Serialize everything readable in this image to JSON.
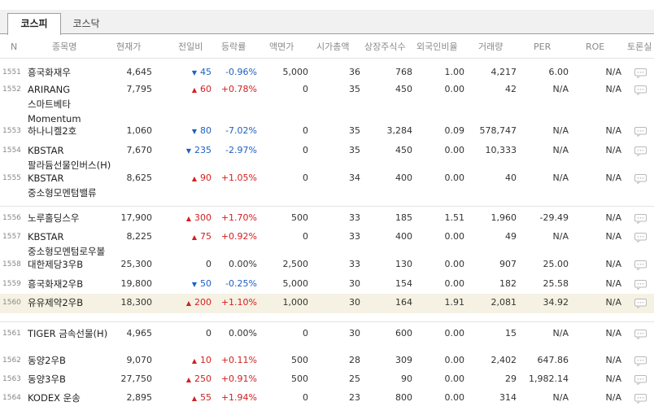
{
  "tabs": [
    {
      "label": "코스피",
      "active": true
    },
    {
      "label": "코스닥",
      "active": false
    }
  ],
  "columns": [
    "N",
    "종목명",
    "현재가",
    "전일비",
    "등락률",
    "액면가",
    "시가총액",
    "상장주식수",
    "외국인비율",
    "거래량",
    "PER",
    "ROE",
    "토론실"
  ],
  "colors": {
    "up": "#d22020",
    "down": "#1f5fbf",
    "highlight": "#f5f2e3"
  },
  "rows": [
    {
      "no": "1551",
      "name": "흥국화재우",
      "price": "4,645",
      "dir": "down",
      "change": "45",
      "rate": "-0.96%",
      "par": "5,000",
      "cap": "36",
      "shares": "768",
      "foreign": "1.00",
      "volume": "4,217",
      "per": "6.00",
      "roe": "N/A"
    },
    {
      "no": "1552",
      "name": "ARIRANG 스마트베타 Momentum",
      "price": "7,795",
      "dir": "up",
      "change": "60",
      "rate": "+0.78%",
      "par": "0",
      "cap": "35",
      "shares": "450",
      "foreign": "0.00",
      "volume": "42",
      "per": "N/A",
      "roe": "N/A"
    },
    {
      "no": "1553",
      "name": "하나니켈2호",
      "price": "1,060",
      "dir": "down",
      "change": "80",
      "rate": "-7.02%",
      "par": "0",
      "cap": "35",
      "shares": "3,284",
      "foreign": "0.09",
      "volume": "578,747",
      "per": "N/A",
      "roe": "N/A"
    },
    {
      "no": "1554",
      "name": "KBSTAR 팔라듐선물인버스(H)",
      "price": "7,670",
      "dir": "down",
      "change": "235",
      "rate": "-2.97%",
      "par": "0",
      "cap": "35",
      "shares": "450",
      "foreign": "0.00",
      "volume": "10,333",
      "per": "N/A",
      "roe": "N/A"
    },
    {
      "no": "1555",
      "name": "KBSTAR 중소형모멘텀밸류",
      "price": "8,625",
      "dir": "up",
      "change": "90",
      "rate": "+1.05%",
      "par": "0",
      "cap": "34",
      "shares": "400",
      "foreign": "0.00",
      "volume": "40",
      "per": "N/A",
      "roe": "N/A"
    },
    {
      "no": "1556",
      "name": "노루홀딩스우",
      "price": "17,900",
      "dir": "up",
      "change": "300",
      "rate": "+1.70%",
      "par": "500",
      "cap": "33",
      "shares": "185",
      "foreign": "1.51",
      "volume": "1,960",
      "per": "-29.49",
      "roe": "N/A"
    },
    {
      "no": "1557",
      "name": "KBSTAR 중소형모멘텀로우볼",
      "price": "8,225",
      "dir": "up",
      "change": "75",
      "rate": "+0.92%",
      "par": "0",
      "cap": "33",
      "shares": "400",
      "foreign": "0.00",
      "volume": "49",
      "per": "N/A",
      "roe": "N/A"
    },
    {
      "no": "1558",
      "name": "대한제당3우B",
      "price": "25,300",
      "dir": "none",
      "change": "0",
      "rate": "0.00%",
      "par": "2,500",
      "cap": "33",
      "shares": "130",
      "foreign": "0.00",
      "volume": "907",
      "per": "25.00",
      "roe": "N/A"
    },
    {
      "no": "1559",
      "name": "흥국화재2우B",
      "price": "19,800",
      "dir": "down",
      "change": "50",
      "rate": "-0.25%",
      "par": "5,000",
      "cap": "30",
      "shares": "154",
      "foreign": "0.00",
      "volume": "182",
      "per": "25.58",
      "roe": "N/A"
    },
    {
      "no": "1560",
      "name": "유유제약2우B",
      "price": "18,300",
      "dir": "up",
      "change": "200",
      "rate": "+1.10%",
      "par": "1,000",
      "cap": "30",
      "shares": "164",
      "foreign": "1.91",
      "volume": "2,081",
      "per": "34.92",
      "roe": "N/A"
    },
    {
      "no": "1561",
      "name": "TIGER 금속선물(H)",
      "price": "4,965",
      "dir": "none",
      "change": "0",
      "rate": "0.00%",
      "par": "0",
      "cap": "30",
      "shares": "600",
      "foreign": "0.00",
      "volume": "15",
      "per": "N/A",
      "roe": "N/A"
    },
    {
      "no": "1562",
      "name": "동양2우B",
      "price": "9,070",
      "dir": "up",
      "change": "10",
      "rate": "+0.11%",
      "par": "500",
      "cap": "28",
      "shares": "309",
      "foreign": "0.00",
      "volume": "2,402",
      "per": "647.86",
      "roe": "N/A"
    },
    {
      "no": "1563",
      "name": "동양3우B",
      "price": "27,750",
      "dir": "up",
      "change": "250",
      "rate": "+0.91%",
      "par": "500",
      "cap": "25",
      "shares": "90",
      "foreign": "0.00",
      "volume": "29",
      "per": "1,982.14",
      "roe": "N/A"
    },
    {
      "no": "1564",
      "name": "KODEX 운송",
      "price": "2,895",
      "dir": "up",
      "change": "55",
      "rate": "+1.94%",
      "par": "0",
      "cap": "23",
      "shares": "800",
      "foreign": "0.00",
      "volume": "314",
      "per": "N/A",
      "roe": "N/A"
    }
  ]
}
